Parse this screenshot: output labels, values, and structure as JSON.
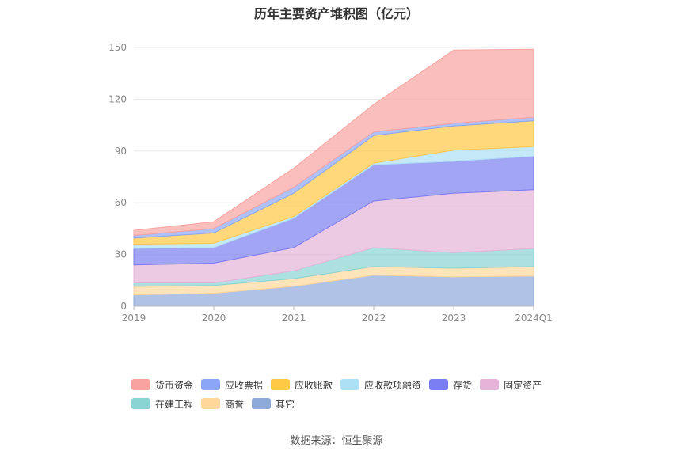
{
  "title": "历年主要资产堆积图（亿元）",
  "source": "数据来源：恒生聚源",
  "chart_data": {
    "type": "area",
    "stacked": true,
    "categories": [
      "2019",
      "2020",
      "2021",
      "2022",
      "2023",
      "2024Q1"
    ],
    "ylim": [
      0,
      150
    ],
    "yticks": [
      0,
      30,
      60,
      90,
      120,
      150
    ],
    "grid": true,
    "legend_position": "bottom",
    "series": [
      {
        "name": "其它",
        "color": "#8eaadb",
        "values": [
          6.5,
          7.5,
          11.5,
          18.0,
          17.0,
          17.5
        ]
      },
      {
        "name": "商誉",
        "color": "#ffd79b",
        "values": [
          5.0,
          4.5,
          4.5,
          5.0,
          5.0,
          5.5
        ]
      },
      {
        "name": "在建工程",
        "color": "#8ad4d4",
        "values": [
          2.0,
          1.5,
          4.5,
          11.0,
          9.0,
          10.5
        ]
      },
      {
        "name": "固定资产",
        "color": "#e6b4d8",
        "values": [
          10.5,
          11.5,
          13.5,
          27.0,
          34.5,
          34.0
        ]
      },
      {
        "name": "存货",
        "color": "#7a7ef0",
        "values": [
          9.5,
          9.0,
          17.0,
          21.0,
          18.5,
          19.5
        ]
      },
      {
        "name": "应收款项融资",
        "color": "#aee0f5",
        "values": [
          2.5,
          2.5,
          1.0,
          1.0,
          6.5,
          5.5
        ]
      },
      {
        "name": "应收账款",
        "color": "#ffc845",
        "values": [
          3.5,
          6.0,
          13.5,
          16.0,
          14.0,
          15.0
        ]
      },
      {
        "name": "应收票据",
        "color": "#8ba6f7",
        "values": [
          1.5,
          2.5,
          3.5,
          2.0,
          1.5,
          2.0
        ]
      },
      {
        "name": "货币资金",
        "color": "#f8a39f",
        "values": [
          3.0,
          4.0,
          11.0,
          16.0,
          42.5,
          39.5
        ]
      }
    ]
  },
  "legend": {
    "row1": [
      {
        "name": "货币资金",
        "color": "#f8a39f"
      },
      {
        "name": "应收票据",
        "color": "#8ba6f7"
      },
      {
        "name": "应收账款",
        "color": "#ffc845"
      },
      {
        "name": "应收款项融资",
        "color": "#aee0f5"
      },
      {
        "name": "存货",
        "color": "#7a7ef0"
      },
      {
        "name": "固定资产",
        "color": "#e6b4d8"
      }
    ],
    "row2": [
      {
        "name": "在建工程",
        "color": "#8ad4d4"
      },
      {
        "name": "商誉",
        "color": "#ffd79b"
      },
      {
        "name": "其它",
        "color": "#8eaadb"
      }
    ]
  }
}
